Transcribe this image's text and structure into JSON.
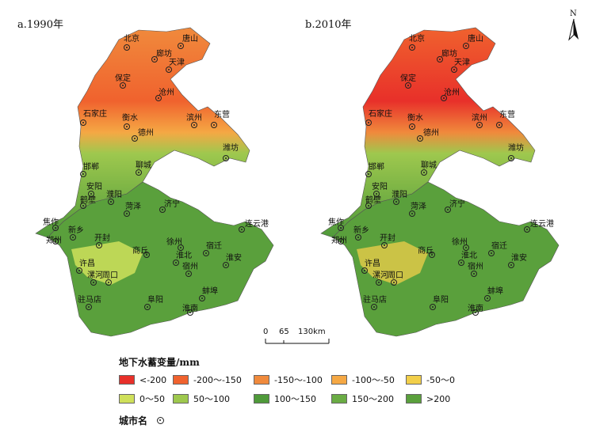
{
  "panels": [
    {
      "id": "a",
      "title": "a.1990年"
    },
    {
      "id": "b",
      "title": "b.2010年"
    }
  ],
  "north_label": "N",
  "scale_bar": {
    "ticks": [
      "0",
      "65",
      "130km"
    ]
  },
  "legend": {
    "title": "地下水蓄变量/mm",
    "classes": [
      {
        "label": "<-200",
        "color": "#e8302a"
      },
      {
        "label": "-200～-150",
        "color": "#f0622e"
      },
      {
        "label": "-150～-100",
        "color": "#f08a3c"
      },
      {
        "label": "-100～-50",
        "color": "#f5a844"
      },
      {
        "label": "-50～0",
        "color": "#f2cf4a"
      },
      {
        "label": "0～50",
        "color": "#cfe05a"
      },
      {
        "label": "50～100",
        "color": "#9ec84e"
      },
      {
        "label": "100～150",
        "color": "#4f9a3a"
      },
      {
        "label": "150～200",
        "color": "#6aac44"
      },
      {
        "label": ">200",
        "color": "#5aa03c"
      }
    ]
  },
  "city_legend_label": "城市名",
  "cities": [
    "北京",
    "唐山",
    "廊坊",
    "天津",
    "保定",
    "沧州",
    "石家庄",
    "衡水",
    "德州",
    "滨州",
    "东营",
    "潍坊",
    "邯郸",
    "聊城",
    "安阳",
    "鹤壁",
    "濮阳",
    "焦作",
    "新乡",
    "菏泽",
    "济宁",
    "郑州",
    "开封",
    "商丘",
    "连云港",
    "徐州",
    "宿迁",
    "淮北",
    "宿州",
    "淮安",
    "许昌",
    "漯河",
    "周口",
    "驻马店",
    "阜阳",
    "蚌埠",
    "淮南"
  ]
}
